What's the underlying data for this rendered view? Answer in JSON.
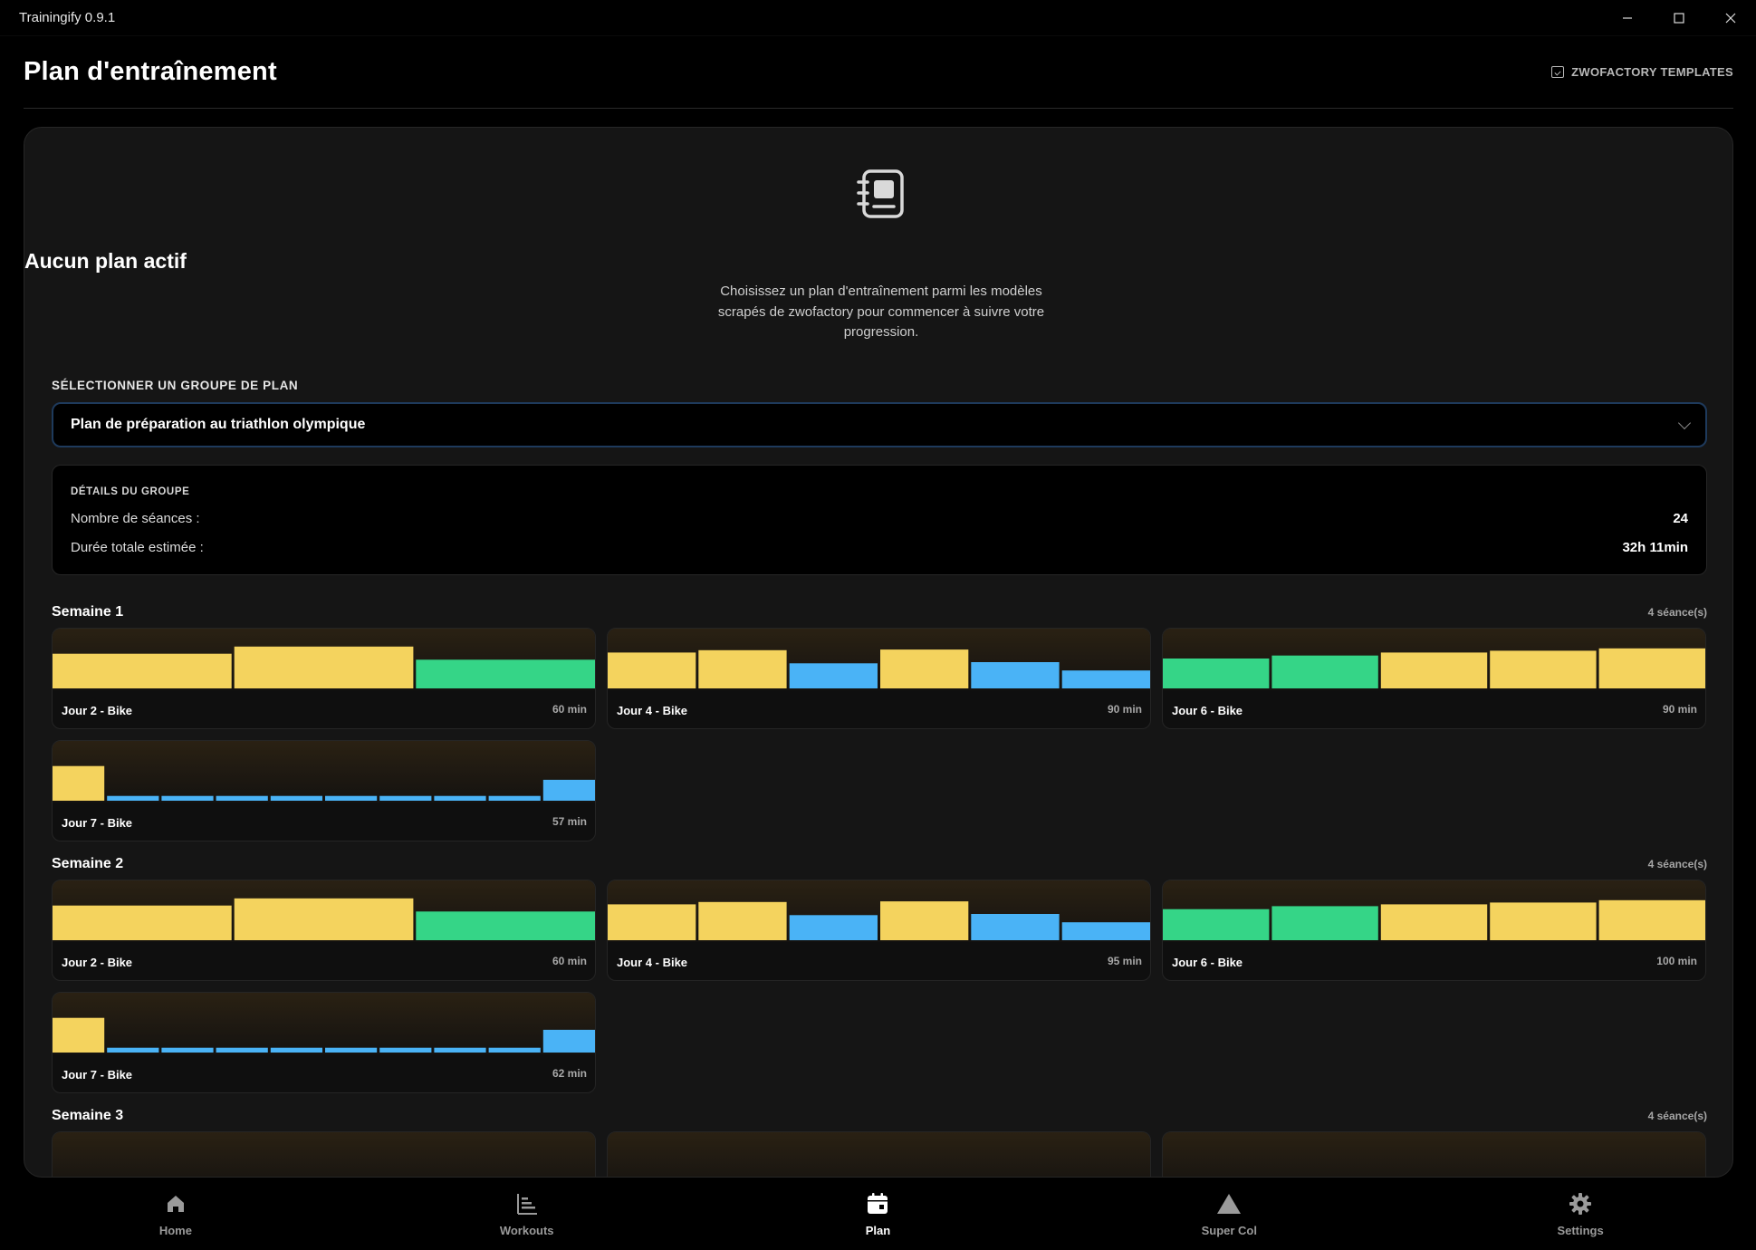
{
  "window": {
    "title": "Trainingify 0.9.1",
    "minimize": "—",
    "maximize": "☐",
    "close": "✕"
  },
  "header": {
    "title": "Plan d'entraînement",
    "templates_link": "ZWOFACTORY TEMPLATES"
  },
  "empty_state": {
    "title": "Aucun plan actif",
    "description": "Choisissez un plan d'entraînement parmi les modèles scrapés de zwofactory pour commencer à suivre votre progression."
  },
  "group_select": {
    "label": "SÉLECTIONNER UN GROUPE DE PLAN",
    "value": "Plan de préparation au triathlon olympique"
  },
  "group_details": {
    "title": "DÉTAILS DU GROUPE",
    "sessions_label": "Nombre de séances :",
    "sessions_value": "24",
    "duration_label": "Durée totale estimée :",
    "duration_value": "32h 11min"
  },
  "colors": {
    "yellow": "#f4d35e",
    "green": "#35d587",
    "blue": "#4ab3f6"
  },
  "weeks": [
    {
      "title": "Semaine 1",
      "count": "4 séance(s)",
      "sessions": [
        {
          "name": "Jour 2 - Bike",
          "duration": "60 min",
          "blocks": [
            [
              "yellow",
              0.58
            ],
            [
              "yellow",
              0.7
            ],
            [
              "green",
              0.48
            ]
          ]
        },
        {
          "name": "Jour 4 - Bike",
          "duration": "90 min",
          "blocks": [
            [
              "yellow",
              0.6
            ],
            [
              "yellow",
              0.64
            ],
            [
              "blue",
              0.42
            ],
            [
              "yellow",
              0.65
            ],
            [
              "blue",
              0.44
            ],
            [
              "blue",
              0.3
            ]
          ]
        },
        {
          "name": "Jour 6 - Bike",
          "duration": "90 min",
          "blocks": [
            [
              "green",
              0.5
            ],
            [
              "green",
              0.55
            ],
            [
              "yellow",
              0.6
            ],
            [
              "yellow",
              0.63
            ],
            [
              "yellow",
              0.67
            ]
          ]
        },
        {
          "name": "Jour 7 - Bike",
          "duration": "57 min",
          "blocks": [
            [
              "yellow",
              0.58
            ],
            [
              "blue",
              0.08
            ],
            [
              "blue",
              0.08
            ],
            [
              "blue",
              0.08
            ],
            [
              "blue",
              0.08
            ],
            [
              "blue",
              0.08
            ],
            [
              "blue",
              0.08
            ],
            [
              "blue",
              0.08
            ],
            [
              "blue",
              0.08
            ],
            [
              "blue",
              0.35
            ]
          ]
        }
      ]
    },
    {
      "title": "Semaine 2",
      "count": "4 séance(s)",
      "sessions": [
        {
          "name": "Jour 2 - Bike",
          "duration": "60 min",
          "blocks": [
            [
              "yellow",
              0.58
            ],
            [
              "yellow",
              0.7
            ],
            [
              "green",
              0.48
            ]
          ]
        },
        {
          "name": "Jour 4 - Bike",
          "duration": "95 min",
          "blocks": [
            [
              "yellow",
              0.6
            ],
            [
              "yellow",
              0.64
            ],
            [
              "blue",
              0.42
            ],
            [
              "yellow",
              0.65
            ],
            [
              "blue",
              0.44
            ],
            [
              "blue",
              0.3
            ]
          ]
        },
        {
          "name": "Jour 6 - Bike",
          "duration": "100 min",
          "blocks": [
            [
              "green",
              0.52
            ],
            [
              "green",
              0.57
            ],
            [
              "yellow",
              0.6
            ],
            [
              "yellow",
              0.63
            ],
            [
              "yellow",
              0.67
            ]
          ]
        },
        {
          "name": "Jour 7 - Bike",
          "duration": "62 min",
          "blocks": [
            [
              "yellow",
              0.58
            ],
            [
              "blue",
              0.08
            ],
            [
              "blue",
              0.08
            ],
            [
              "blue",
              0.08
            ],
            [
              "blue",
              0.08
            ],
            [
              "blue",
              0.08
            ],
            [
              "blue",
              0.08
            ],
            [
              "blue",
              0.08
            ],
            [
              "blue",
              0.08
            ],
            [
              "blue",
              0.38
            ]
          ]
        }
      ]
    },
    {
      "title": "Semaine 3",
      "count": "4 séance(s)",
      "sessions": [
        {
          "name": "",
          "duration": "",
          "blocks": []
        },
        {
          "name": "",
          "duration": "",
          "blocks": []
        },
        {
          "name": "",
          "duration": "",
          "blocks": []
        }
      ]
    }
  ],
  "nav": [
    {
      "label": "Home",
      "icon": "home-icon",
      "active": false
    },
    {
      "label": "Workouts",
      "icon": "workouts-icon",
      "active": false
    },
    {
      "label": "Plan",
      "icon": "calendar-icon",
      "active": true
    },
    {
      "label": "Super Col",
      "icon": "mountain-icon",
      "active": false
    },
    {
      "label": "Settings",
      "icon": "gear-icon",
      "active": false
    }
  ]
}
